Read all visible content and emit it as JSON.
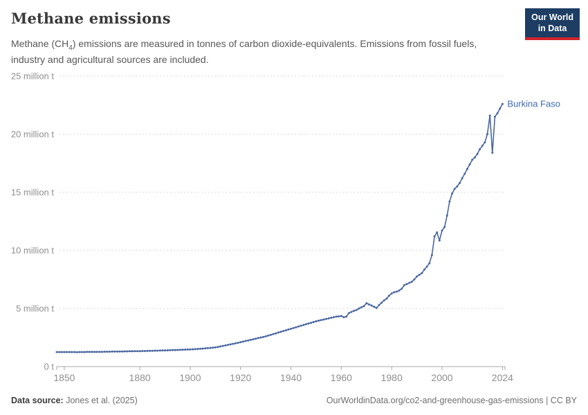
{
  "header": {
    "title": "Methane emissions",
    "subtitle": {
      "prefix": "Methane (CH",
      "subscript": "4",
      "suffix": ") emissions are measured in tonnes of carbon dioxide-equivalents. Emissions from fossil fuels, industry and agricultural sources are included."
    },
    "logo": {
      "line1": "Our World",
      "line2": "in Data"
    }
  },
  "chart_data": {
    "type": "line",
    "title": "Methane emissions",
    "entity_label": "Burkina Faso",
    "grid": true,
    "markers": true,
    "legend_position": "end-of-line",
    "y_axis": {
      "range": [
        0,
        25
      ],
      "unit_suffix": "million t",
      "ticks": [
        {
          "value": 0,
          "label": "0 t"
        },
        {
          "value": 5,
          "label": "5 million t"
        },
        {
          "value": 10,
          "label": "10 million t"
        },
        {
          "value": 15,
          "label": "15 million t"
        },
        {
          "value": 20,
          "label": "20 million t"
        },
        {
          "value": 25,
          "label": "25 million t"
        }
      ]
    },
    "x_axis": {
      "range": [
        1847,
        2025
      ],
      "ticks": [
        {
          "value": 1850,
          "label": "1850"
        },
        {
          "value": 1880,
          "label": "1880"
        },
        {
          "value": 1900,
          "label": "1900"
        },
        {
          "value": 1920,
          "label": "1920"
        },
        {
          "value": 1940,
          "label": "1940"
        },
        {
          "value": 1960,
          "label": "1960"
        },
        {
          "value": 1980,
          "label": "1980"
        },
        {
          "value": 2000,
          "label": "2000"
        },
        {
          "value": 2024,
          "label": "2024"
        }
      ]
    },
    "series": [
      {
        "name": "Burkina Faso",
        "unit": "million t",
        "start_year": 1847,
        "end_year": 2024,
        "values": [
          1.25,
          1.25,
          1.25,
          1.25,
          1.25,
          1.25,
          1.25,
          1.25,
          1.24,
          1.25,
          1.25,
          1.25,
          1.26,
          1.26,
          1.26,
          1.26,
          1.27,
          1.27,
          1.27,
          1.28,
          1.28,
          1.28,
          1.29,
          1.29,
          1.29,
          1.3,
          1.3,
          1.31,
          1.31,
          1.32,
          1.32,
          1.33,
          1.33,
          1.33,
          1.34,
          1.34,
          1.35,
          1.35,
          1.36,
          1.37,
          1.37,
          1.38,
          1.39,
          1.39,
          1.4,
          1.41,
          1.42,
          1.42,
          1.43,
          1.44,
          1.45,
          1.46,
          1.47,
          1.47,
          1.49,
          1.5,
          1.52,
          1.53,
          1.55,
          1.57,
          1.59,
          1.61,
          1.63,
          1.65,
          1.69,
          1.73,
          1.78,
          1.82,
          1.87,
          1.91,
          1.96,
          2.0,
          2.05,
          2.1,
          2.15,
          2.2,
          2.25,
          2.3,
          2.35,
          2.4,
          2.45,
          2.5,
          2.55,
          2.6,
          2.67,
          2.73,
          2.8,
          2.86,
          2.93,
          2.99,
          3.06,
          3.12,
          3.19,
          3.25,
          3.32,
          3.38,
          3.45,
          3.51,
          3.58,
          3.64,
          3.71,
          3.77,
          3.84,
          3.9,
          3.95,
          4.0,
          4.05,
          4.1,
          4.15,
          4.2,
          4.25,
          4.3,
          4.32,
          4.35,
          4.25,
          4.3,
          4.6,
          4.7,
          4.8,
          4.87,
          5.0,
          5.1,
          5.2,
          5.45,
          5.35,
          5.25,
          5.15,
          5.05,
          5.3,
          5.5,
          5.7,
          5.85,
          6.1,
          6.3,
          6.4,
          6.45,
          6.55,
          6.7,
          7.0,
          7.1,
          7.2,
          7.3,
          7.5,
          7.75,
          7.9,
          8.05,
          8.35,
          8.6,
          8.9,
          9.6,
          11.2,
          11.55,
          10.85,
          11.7,
          12.0,
          13.0,
          14.2,
          14.9,
          15.3,
          15.5,
          15.8,
          16.2,
          16.6,
          17.0,
          17.4,
          17.8,
          18.0,
          18.3,
          18.7,
          19.0,
          19.3,
          20.0,
          21.6,
          18.4,
          21.5,
          21.8,
          22.2,
          22.6
        ]
      }
    ]
  },
  "footer": {
    "source_label": "Data source:",
    "source_value": "Jones et al. (2025)",
    "right_text": "OurWorldinData.org/co2-and-greenhouse-gas-emissions | CC BY"
  },
  "colors": {
    "line": "#4a66a0",
    "entity_label": "#3d6bb0",
    "gridline": "#dadada",
    "axis_line": "#a8a8a8",
    "tick_label": "#8f8f8f",
    "logo_bg": "#1d3d63",
    "logo_red": "#d2232a"
  }
}
